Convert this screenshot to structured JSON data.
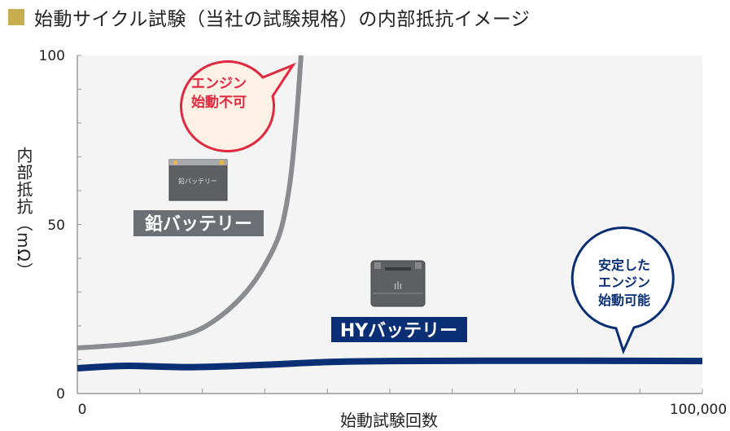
{
  "title": "始動サイクル試験（当社の試験規格）の内部抵抗イメージ",
  "colors": {
    "title_marker": "#c6ad50",
    "plot_bg": "#f4f4f4",
    "lead": "#8a8c90",
    "hy": "#0b2f74",
    "ng_bubble_stroke": "#e0283e",
    "ng_bubble_fill": "#fdf1e6",
    "ok_bubble_stroke": "#0b2f74"
  },
  "chart_data": {
    "type": "line",
    "title": "始動サイクル試験（当社の試験規格）の内部抵抗イメージ",
    "xlabel": "始動試験回数",
    "ylabel": "内部抵抗（mΩ）",
    "xlim": [
      0,
      100000
    ],
    "ylim": [
      0,
      100
    ],
    "x_tick_labels": [
      "0",
      "100,000"
    ],
    "y_tick_labels": [
      "0",
      "50",
      "100"
    ],
    "grid": false,
    "series": [
      {
        "name": "鉛バッテリー",
        "color": "#8a8c90",
        "x": [
          0,
          8000,
          14000,
          19000,
          23000,
          27000,
          30000,
          32500,
          34000,
          35000,
          35800
        ],
        "y": [
          13.5,
          14.5,
          16,
          18.5,
          23,
          30,
          38,
          48,
          62,
          80,
          100
        ]
      },
      {
        "name": "HYバッテリー",
        "color": "#0b2f74",
        "x": [
          0,
          8000,
          18000,
          30000,
          40000,
          50000,
          65000,
          80000,
          100000
        ],
        "y": [
          7.5,
          8.2,
          7.8,
          8.5,
          9.3,
          9.6,
          9.7,
          9.7,
          9.6
        ]
      }
    ],
    "annotations": [
      {
        "text": [
          "エンジン",
          "始動不可"
        ],
        "target_series": "鉛バッテリー"
      },
      {
        "text": [
          "安定した",
          "エンジン",
          "始動可能"
        ],
        "target_series": "HYバッテリー"
      }
    ],
    "battery_icons": {
      "lead_icon_label": "鉛バッテリー"
    }
  }
}
